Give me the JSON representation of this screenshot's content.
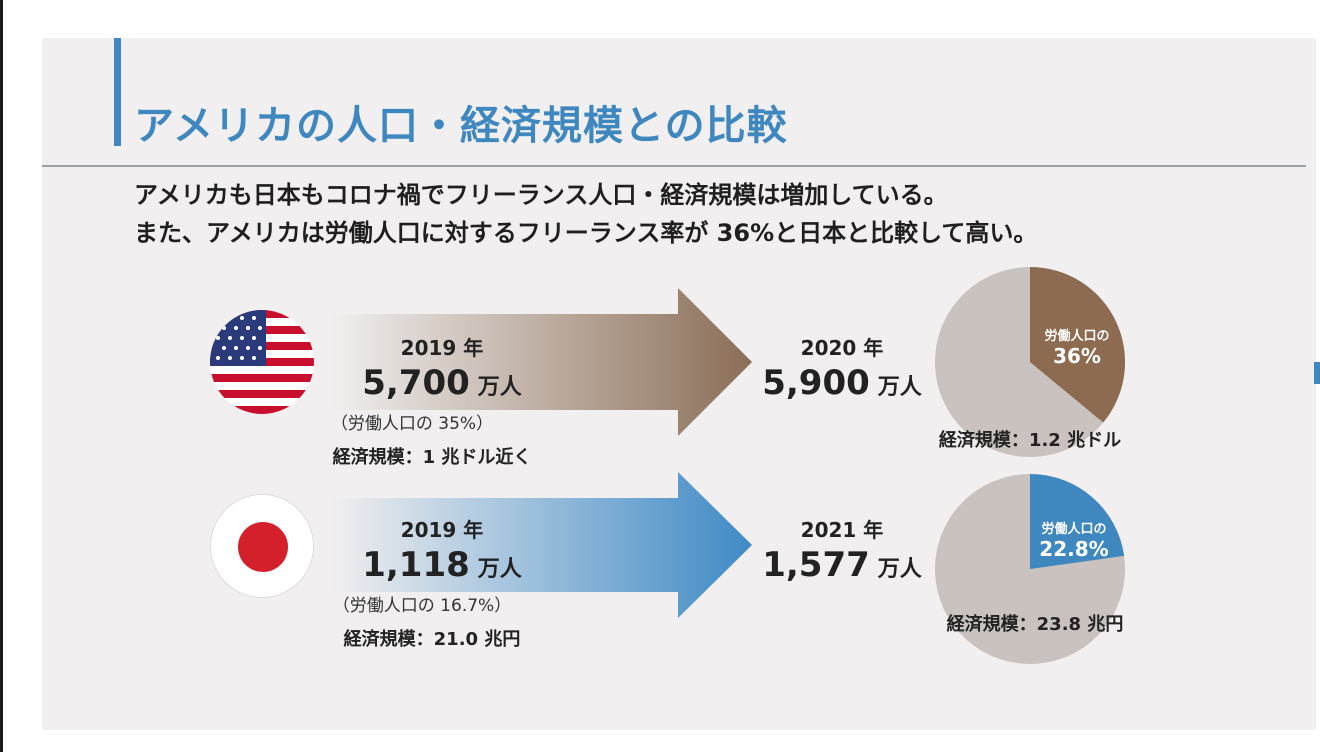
{
  "header": {
    "title": "アメリカの人口・経済規模との比較"
  },
  "description": {
    "line1": "アメリカも日本もコロナ禍でフリーランス人口・経済規模は増加している。",
    "line2": "また、アメリカは労働人口に対するフリーランス率が 36%と日本と比較して高い。"
  },
  "colors": {
    "title_blue": "#3e87bf",
    "usa_arrow": "#8b6e57",
    "japan_arrow": "#3f8ac6",
    "usa_pie_slice": "#8c6b50",
    "japan_pie_slice": "#3e87bf",
    "pie_base": "#c9c2bf"
  },
  "rows": [
    {
      "country_icon": "usa-flag-icon",
      "before": {
        "year": "2019 年",
        "population_value": "5,700",
        "population_unit": "万人",
        "labor_note": "（労働人口の 35%）",
        "economy": "経済規模：1 兆ドル近く"
      },
      "after": {
        "year": "2020 年",
        "population_value": "5,900",
        "population_unit": "万人"
      },
      "pie": {
        "share_percent": 36,
        "label_small": "労働人口の",
        "label_big": "36%",
        "economy": "経済規模：1.2 兆ドル"
      }
    },
    {
      "country_icon": "japan-flag-icon",
      "before": {
        "year": "2019 年",
        "population_value": "1,118",
        "population_unit": "万人",
        "labor_note": "（労働人口の 16.7%）",
        "economy": "経済規模：21.0 兆円"
      },
      "after": {
        "year": "2021 年",
        "population_value": "1,577",
        "population_unit": "万人"
      },
      "pie": {
        "share_percent": 22.8,
        "label_small": "労働人口の",
        "label_big": "22.8%",
        "economy": "経済規模：23.8 兆円"
      }
    }
  ]
}
